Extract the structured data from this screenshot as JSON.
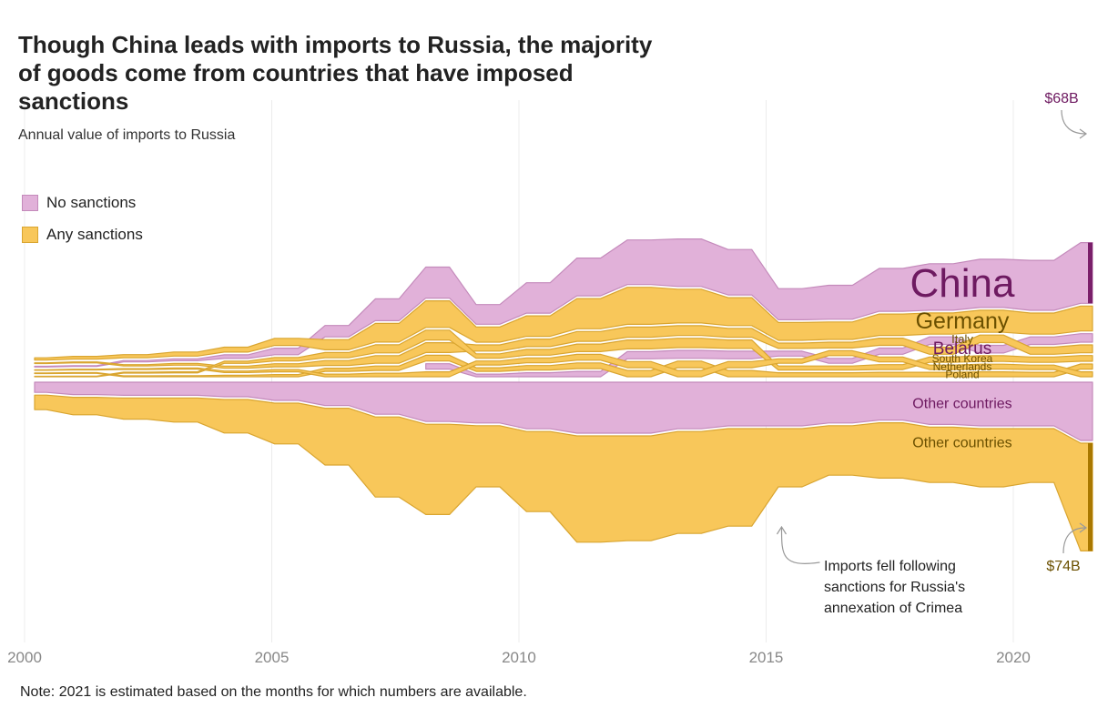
{
  "title": "Though China leads with imports to Russia, the majority of goods come from countries that have imposed sanctions",
  "subtitle": "Annual value of imports to Russia",
  "legend": {
    "no_sanctions": "No sanctions",
    "any_sanctions": "Any sanctions"
  },
  "note": "Note: 2021 is estimated based on the months for which numbers are available.",
  "colors": {
    "no_sanctions_fill": "#e1b1d9",
    "no_sanctions_stroke": "#c48abb",
    "any_sanctions_fill": "#f8c75a",
    "any_sanctions_stroke": "#d9a530",
    "china_text": "#6e1a61",
    "germany_text": "#6b5000",
    "china_bar": "#7a1f6a",
    "others_bar": "#a97800"
  },
  "chart_data": {
    "type": "area",
    "subtype": "bump-streamgraph",
    "units": "billion US$ (approx.)",
    "x": [
      2000,
      2001,
      2002,
      2003,
      2004,
      2005,
      2006,
      2007,
      2008,
      2009,
      2010,
      2011,
      2012,
      2013,
      2014,
      2015,
      2016,
      2017,
      2018,
      2019,
      2020,
      2021
    ],
    "xticks": [
      2000,
      2005,
      2010,
      2015,
      2020
    ],
    "series": [
      {
        "name": "China",
        "label": "China",
        "sanctions": "none",
        "values": [
          0.8,
          1.0,
          1.5,
          2.2,
          4.0,
          7.3,
          12.7,
          24.4,
          34.8,
          22.0,
          34.0,
          42.4,
          50.0,
          53.2,
          50.9,
          34.9,
          38.1,
          48.1,
          52.2,
          54.1,
          56.0,
          68.0
        ]
      },
      {
        "name": "Germany",
        "label": "Germany",
        "sanctions": "any",
        "values": [
          2.5,
          3.2,
          3.6,
          4.5,
          5.6,
          8.0,
          11.4,
          21.0,
          29.8,
          17.0,
          23.0,
          33.8,
          41.5,
          37.9,
          31.4,
          20.0,
          19.6,
          24.0,
          23.7,
          24.8,
          23.6,
          28.0
        ]
      },
      {
        "name": "Belarus",
        "label": "Belarus",
        "sanctions": "none",
        "values": [
          0.0,
          0.0,
          0.0,
          0.0,
          0.0,
          0.0,
          0.0,
          0.0,
          6.0,
          3.0,
          4.5,
          6.0,
          8.0,
          9.0,
          8.5,
          5.5,
          5.5,
          7.0,
          8.5,
          8.5,
          8.5,
          9.5
        ]
      },
      {
        "name": "Italy",
        "label": "Italy",
        "sanctions": "any",
        "values": [
          0.9,
          1.1,
          1.4,
          1.9,
          2.4,
          3.5,
          5.5,
          8.6,
          11.0,
          7.0,
          8.5,
          11.0,
          11.5,
          11.0,
          10.0,
          6.0,
          6.5,
          8.0,
          8.0,
          8.5,
          8.0,
          8.8
        ]
      },
      {
        "name": "Poland",
        "label": "Poland",
        "sanctions": "any",
        "values": [
          0.6,
          0.8,
          1.0,
          1.2,
          1.6,
          2.5,
          3.5,
          5.0,
          6.5,
          4.0,
          5.0,
          6.5,
          7.0,
          7.5,
          7.0,
          4.5,
          4.5,
          5.0,
          5.0,
          5.5,
          5.0,
          5.7
        ]
      },
      {
        "name": "South Korea",
        "label": "South Korea",
        "sanctions": "any",
        "values": [
          0.5,
          0.7,
          1.0,
          1.3,
          2.5,
          4.0,
          6.0,
          9.0,
          11.0,
          5.0,
          6.5,
          8.5,
          10.0,
          10.5,
          9.5,
          4.5,
          4.5,
          5.5,
          6.0,
          6.5,
          6.0,
          6.5
        ]
      },
      {
        "name": "Netherlands",
        "label": "Netherlands",
        "sanctions": "any",
        "values": [
          0.6,
          0.8,
          1.0,
          1.3,
          1.8,
          2.5,
          3.0,
          4.0,
          5.5,
          4.5,
          5.5,
          6.5,
          7.0,
          7.0,
          7.0,
          5.0,
          5.5,
          5.5,
          5.0,
          5.5,
          5.0,
          5.5
        ]
      },
      {
        "name": "Other countries (no sanctions)",
        "label": "Other countries",
        "sanctions": "none",
        "values": [
          7.0,
          8.5,
          9.0,
          9.0,
          10.0,
          12.5,
          16.0,
          22.0,
          27.0,
          28.0,
          32.0,
          35.0,
          35.0,
          32.0,
          30.0,
          30.0,
          28.0,
          26.0,
          29.0,
          30.0,
          30.0,
          40.0
        ]
      },
      {
        "name": "Other countries (any sanctions)",
        "label": "Other countries",
        "sanctions": "any",
        "values": [
          10.0,
          12.0,
          14.5,
          16.5,
          23.0,
          28.0,
          39.0,
          55.0,
          62.0,
          42.0,
          55.0,
          73.0,
          72.0,
          70.0,
          67.0,
          40.0,
          34.0,
          38.0,
          38.0,
          40.0,
          37.0,
          74.0
        ]
      }
    ],
    "end_labels": [
      {
        "series": "China",
        "text": "$68B"
      },
      {
        "series": "Other countries (any sanctions)",
        "text": "$74B"
      }
    ],
    "annotations": [
      {
        "x": 2015,
        "text_lines": [
          "Imports fell following",
          "sanctions for Russia's",
          "annexation of Crimea"
        ]
      }
    ]
  }
}
